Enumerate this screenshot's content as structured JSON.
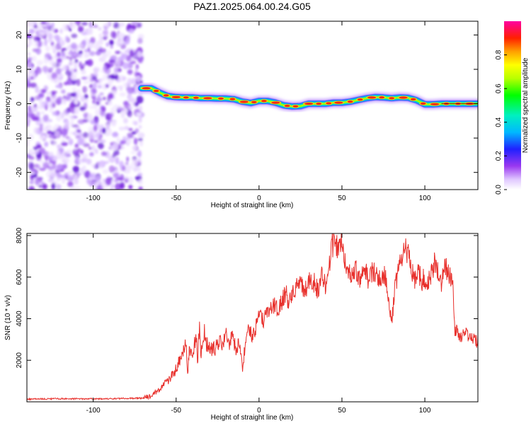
{
  "figure": {
    "title": "PAZ1.2025.064.00.24.G05"
  },
  "chart_data": [
    {
      "type": "heatmap",
      "xlabel": "Height of straight line (km)",
      "ylabel": "Frequency (Hz)",
      "xlim": [
        -140,
        132
      ],
      "ylim": [
        -25,
        24
      ],
      "xticks": [
        -100,
        -50,
        0,
        50,
        100
      ],
      "yticks": [
        -20,
        -10,
        0,
        10,
        20
      ],
      "noise_region_x": [
        -140,
        -71
      ],
      "ridge": {
        "x": [
          -71,
          -65,
          -60,
          -55,
          -50,
          -45,
          -40,
          -35,
          -30,
          -25,
          -20,
          -15,
          -10,
          -5,
          0,
          5,
          10,
          15,
          20,
          25,
          30,
          35,
          40,
          45,
          50,
          55,
          60,
          65,
          70,
          75,
          80,
          85,
          90,
          95,
          100,
          105,
          110,
          115,
          120,
          125,
          132
        ],
        "y": [
          4.5,
          4.5,
          3.2,
          2.2,
          1.9,
          1.8,
          1.8,
          1.6,
          1.6,
          1.5,
          1.5,
          1.3,
          0.6,
          0.2,
          0.8,
          0.8,
          0.3,
          -0.5,
          -0.8,
          -0.7,
          0.0,
          0.0,
          0.0,
          0.3,
          0.3,
          0.6,
          1.1,
          1.6,
          1.9,
          1.8,
          1.6,
          1.8,
          1.7,
          1.0,
          -0.2,
          -0.2,
          0.0,
          0.0,
          0.0,
          0.0,
          0.0
        ]
      },
      "colorbar": {
        "label": "Normalized spectral amplitude",
        "ticks": [
          0.0,
          0.2,
          0.4,
          0.6,
          0.8
        ],
        "tick_labels": [
          "0.0",
          "0.2",
          "0.4",
          "0.6",
          "0.8"
        ],
        "range": [
          0,
          1
        ]
      }
    },
    {
      "type": "line",
      "xlabel": "Height of straight line (km)",
      "ylabel": "SNR (10 * v/v)",
      "xlim": [
        -140,
        132
      ],
      "ylim": [
        0,
        8100
      ],
      "xticks": [
        -100,
        -50,
        0,
        50,
        100
      ],
      "yticks": [
        2000,
        4000,
        6000,
        8000
      ],
      "series": [
        {
          "color": "#e8302c",
          "x": [
            -140,
            -120,
            -100,
            -80,
            -70,
            -65,
            -60,
            -57,
            -55,
            -53,
            -51,
            -50,
            -48,
            -46,
            -44,
            -43,
            -42,
            -40,
            -38,
            -37,
            -36,
            -35,
            -34,
            -33,
            -32,
            -30,
            -28,
            -26,
            -24,
            -22,
            -20,
            -18,
            -16,
            -14,
            -12,
            -10,
            -8,
            -6,
            -4,
            -2,
            0,
            2,
            4,
            6,
            8,
            10,
            12,
            14,
            16,
            18,
            20,
            22,
            24,
            26,
            28,
            30,
            32,
            34,
            36,
            38,
            40,
            42,
            44,
            46,
            48,
            50,
            52,
            54,
            56,
            58,
            60,
            62,
            64,
            66,
            68,
            70,
            72,
            74,
            76,
            78,
            80,
            82,
            84,
            86,
            88,
            90,
            92,
            94,
            96,
            98,
            100,
            102,
            104,
            106,
            108,
            110,
            112,
            114,
            116,
            117,
            118,
            119,
            120,
            122,
            124,
            126,
            128,
            130,
            132
          ],
          "y": [
            130,
            150,
            140,
            160,
            180,
            300,
            600,
            900,
            1100,
            1300,
            1400,
            1600,
            2000,
            2400,
            2800,
            1500,
            2600,
            2200,
            3200,
            2000,
            3600,
            2300,
            3000,
            3400,
            2800,
            2700,
            2500,
            2600,
            2900,
            2800,
            3300,
            2700,
            3200,
            2500,
            2800,
            1600,
            2900,
            3500,
            3200,
            3600,
            4100,
            3900,
            4200,
            4300,
            4500,
            4700,
            4400,
            4900,
            5300,
            4800,
            5100,
            5500,
            5700,
            5500,
            5300,
            5800,
            5900,
            5600,
            5300,
            6200,
            5600,
            6500,
            7500,
            7700,
            7300,
            8000,
            6600,
            6200,
            5900,
            6500,
            5800,
            6100,
            6400,
            5900,
            6200,
            6300,
            5900,
            6100,
            6000,
            5200,
            3800,
            5500,
            6300,
            7000,
            7400,
            7100,
            6400,
            5900,
            6300,
            5800,
            6000,
            5700,
            6100,
            6700,
            6200,
            5500,
            6700,
            6200,
            5900,
            5600,
            3300,
            3500,
            3400,
            3200,
            3600,
            3200,
            3100,
            2900,
            2900
          ]
        }
      ]
    }
  ]
}
